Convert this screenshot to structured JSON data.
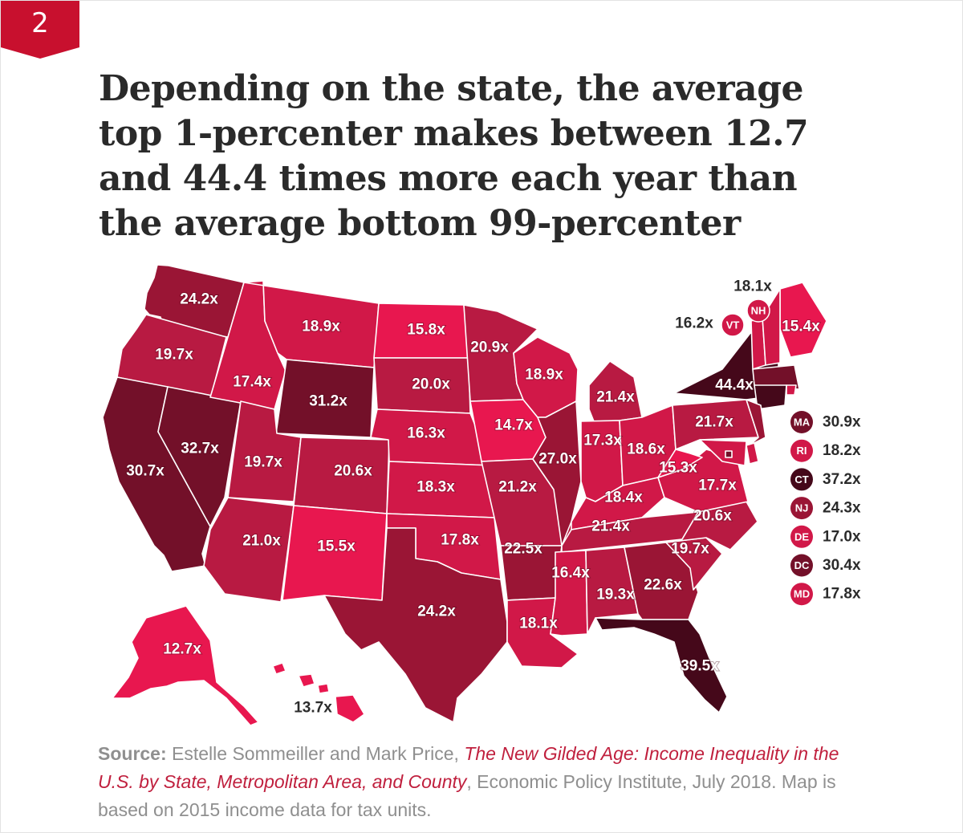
{
  "badge": {
    "number": "2"
  },
  "headline": {
    "lines": [
      "Depending on the state, the average",
      "top 1-percenter makes between 12.7",
      "and 44.4 times more each year than",
      "the average bottom 99-percenter"
    ]
  },
  "colors": {
    "scale": [
      "#e8174f",
      "#d11848",
      "#b81a42",
      "#9a1535",
      "#731029",
      "#45081a"
    ],
    "badge": "#c8102e",
    "source_title": "#c0203e"
  },
  "map_data": {
    "unit": "x",
    "states": [
      {
        "state": "WA",
        "label": "24.2x",
        "value": 24.2
      },
      {
        "state": "OR",
        "label": "19.7x",
        "value": 19.7
      },
      {
        "state": "CA",
        "label": "30.7x",
        "value": 30.7
      },
      {
        "state": "NV",
        "label": "32.7x",
        "value": 32.7
      },
      {
        "state": "ID",
        "label": "17.4x",
        "value": 17.4
      },
      {
        "state": "MT",
        "label": "18.9x",
        "value": 18.9
      },
      {
        "state": "WY",
        "label": "31.2x",
        "value": 31.2
      },
      {
        "state": "UT",
        "label": "19.7x",
        "value": 19.7
      },
      {
        "state": "CO",
        "label": "20.6x",
        "value": 20.6
      },
      {
        "state": "AZ",
        "label": "21.0x",
        "value": 21.0
      },
      {
        "state": "NM",
        "label": "15.5x",
        "value": 15.5
      },
      {
        "state": "ND",
        "label": "15.8x",
        "value": 15.8
      },
      {
        "state": "SD",
        "label": "20.0x",
        "value": 20.0
      },
      {
        "state": "NE",
        "label": "16.3x",
        "value": 16.3
      },
      {
        "state": "KS",
        "label": "18.3x",
        "value": 18.3
      },
      {
        "state": "OK",
        "label": "17.8x",
        "value": 17.8
      },
      {
        "state": "TX",
        "label": "24.2x",
        "value": 24.2
      },
      {
        "state": "MN",
        "label": "20.9x",
        "value": 20.9
      },
      {
        "state": "IA",
        "label": "14.7x",
        "value": 14.7
      },
      {
        "state": "MO",
        "label": "21.2x",
        "value": 21.2
      },
      {
        "state": "AR",
        "label": "22.5x",
        "value": 22.5
      },
      {
        "state": "LA",
        "label": "18.1x",
        "value": 18.1
      },
      {
        "state": "WI",
        "label": "18.9x",
        "value": 18.9
      },
      {
        "state": "IL",
        "label": "27.0x",
        "value": 27.0
      },
      {
        "state": "MI",
        "label": "21.4x",
        "value": 21.4
      },
      {
        "state": "IN",
        "label": "17.3x",
        "value": 17.3
      },
      {
        "state": "OH",
        "label": "18.6x",
        "value": 18.6
      },
      {
        "state": "KY",
        "label": "18.4x",
        "value": 18.4
      },
      {
        "state": "TN",
        "label": "21.4x",
        "value": 21.4
      },
      {
        "state": "MS",
        "label": "16.4x",
        "value": 16.4
      },
      {
        "state": "AL",
        "label": "19.3x",
        "value": 19.3
      },
      {
        "state": "GA",
        "label": "22.6x",
        "value": 22.6
      },
      {
        "state": "FL",
        "label": "39.5x",
        "value": 39.5
      },
      {
        "state": "SC",
        "label": "19.7x",
        "value": 19.7
      },
      {
        "state": "NC",
        "label": "20.6x",
        "value": 20.6
      },
      {
        "state": "VA",
        "label": "17.7x",
        "value": 17.7
      },
      {
        "state": "WV",
        "label": "15.3x",
        "value": 15.3
      },
      {
        "state": "PA",
        "label": "21.7x",
        "value": 21.7
      },
      {
        "state": "NY",
        "label": "44.4x",
        "value": 44.4
      },
      {
        "state": "ME",
        "label": "15.4x",
        "value": 15.4
      },
      {
        "state": "AK",
        "label": "12.7x",
        "value": 12.7
      },
      {
        "state": "HI",
        "label": "13.7x",
        "value": 13.7
      }
    ],
    "small_states": [
      {
        "state": "VT",
        "abbr": "VT",
        "label": "16.2x",
        "value": 16.2
      },
      {
        "state": "NH",
        "abbr": "NH",
        "label": "18.1x",
        "value": 18.1
      }
    ],
    "legend": [
      {
        "abbr": "MA",
        "label": "30.9x",
        "value": 30.9
      },
      {
        "abbr": "RI",
        "label": "18.2x",
        "value": 18.2
      },
      {
        "abbr": "CT",
        "label": "37.2x",
        "value": 37.2
      },
      {
        "abbr": "NJ",
        "label": "24.3x",
        "value": 24.3
      },
      {
        "abbr": "DE",
        "label": "17.0x",
        "value": 17.0
      },
      {
        "abbr": "DC",
        "label": "30.4x",
        "value": 30.4
      },
      {
        "abbr": "MD",
        "label": "17.8x",
        "value": 17.8
      }
    ]
  },
  "source": {
    "key": "Source:",
    "authors": " Estelle Sommeiller and Mark Price, ",
    "title": "The New Gilded Age: Income Inequality in the U.S. by State, Metropolitan Area, and County",
    "rest": ", Economic Policy Institute, July 2018. Map is based on 2015 income data for tax units."
  }
}
